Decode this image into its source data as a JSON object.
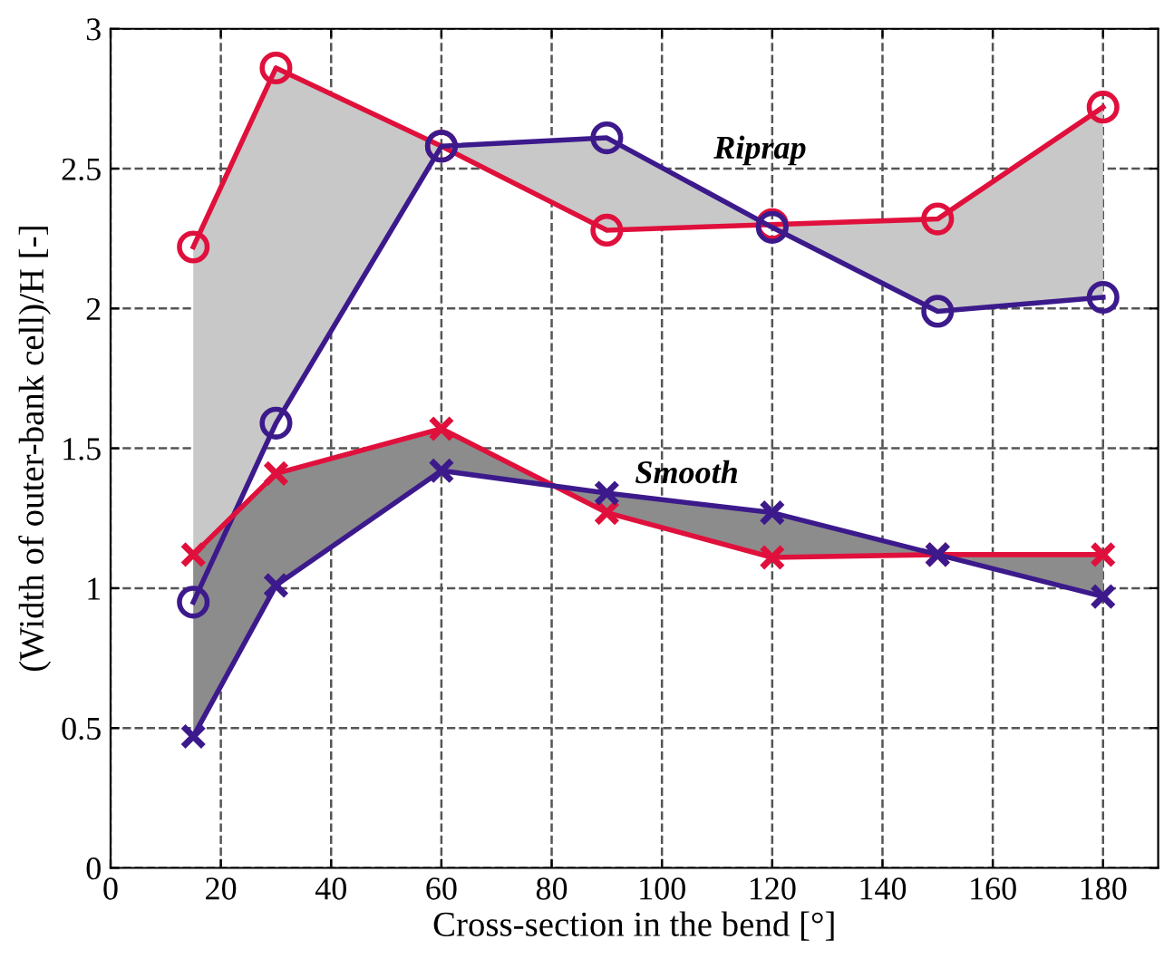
{
  "chart_data": {
    "type": "line",
    "xlabel": "Cross-section in the bend [°]",
    "ylabel": "(Width of outer-bank cell)/H [-]",
    "x": [
      15,
      30,
      60,
      90,
      120,
      150,
      180
    ],
    "series": [
      {
        "color": "#e0103c",
        "marker": "circle",
        "values": [
          2.22,
          2.86,
          2.58,
          2.28,
          2.3,
          2.32,
          2.72
        ],
        "lower": [
          0.95,
          1.59,
          2.58,
          2.61,
          2.29,
          1.99,
          2.04
        ],
        "upper": [
          2.22,
          2.86,
          2.58,
          2.28,
          2.3,
          2.32,
          2.72
        ]
      },
      {
        "color": "#3c1a8c",
        "marker": "circle",
        "values": [
          0.95,
          1.59,
          2.58,
          2.61,
          2.29,
          1.99,
          2.04
        ]
      },
      {
        "color": "#e0103c",
        "marker": "cross",
        "values": [
          1.12,
          1.41,
          1.57,
          1.27,
          1.11,
          1.12,
          1.12
        ],
        "lower": [
          0.47,
          1.01,
          1.42,
          1.34,
          1.27,
          1.12,
          0.97
        ],
        "upper": [
          1.12,
          1.41,
          1.57,
          1.27,
          1.11,
          1.12,
          1.12
        ]
      },
      {
        "color": "#3c1a8c",
        "marker": "cross",
        "values": [
          0.47,
          1.01,
          1.42,
          1.34,
          1.27,
          1.12,
          0.97
        ]
      }
    ],
    "annotations": [
      "Riprap",
      "Smooth"
    ],
    "xlim": [
      0,
      190
    ],
    "xticks": [
      0,
      20,
      40,
      60,
      80,
      100,
      120,
      140,
      160,
      180
    ],
    "ylim": [
      0,
      3
    ],
    "yticks": [
      0,
      0.5,
      1,
      1.5,
      2,
      2.5,
      3
    ],
    "grid": true,
    "line_style": "solid"
  }
}
